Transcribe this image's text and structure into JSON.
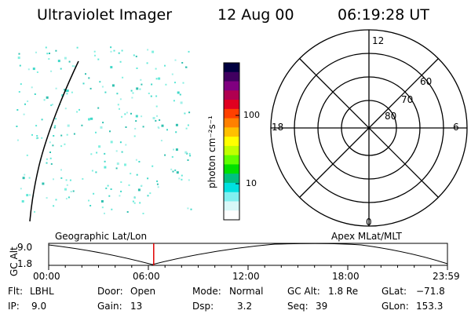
{
  "header": {
    "instrument": "Ultraviolet Imager",
    "date": "12 Aug 00",
    "time": "06:19:28 UT"
  },
  "colorbar": {
    "unit_label": "photon cm⁻²s⁻¹",
    "tick_100": "100",
    "tick_10": "10",
    "colors": [
      "#000040",
      "#400060",
      "#800080",
      "#b00050",
      "#e00020",
      "#ff4000",
      "#ff8000",
      "#ffc000",
      "#ffff00",
      "#c0ff00",
      "#60ff00",
      "#00e000",
      "#00c080",
      "#00e0e0",
      "#80f0f0",
      "#d8f8f8",
      "#ffffff"
    ]
  },
  "polar": {
    "mlt_12": "12",
    "mlt_18": "18",
    "mlt_6": "6",
    "mlt_0": "0",
    "lat_60": "60",
    "lat_70": "70",
    "lat_80": "80"
  },
  "timeline": {
    "left_label": "Geographic Lat/Lon",
    "right_label": "Apex MLat/MLT",
    "axis_label": "GC Alt",
    "y_max": "9.0",
    "y_min": "1.8",
    "times": [
      "00:00",
      "06:00",
      "12:00",
      "18:00",
      "23:59"
    ],
    "marker_time_fraction": 0.2634,
    "marker_color": "#e00000"
  },
  "status": {
    "flt_label": "Flt:",
    "flt_value": "LBHL",
    "ip_label": "IP:",
    "ip_value": "9.0",
    "door_label": "Door:",
    "door_value": "Open",
    "gain_label": "Gain:",
    "gain_value": "13",
    "mode_label": "Mode:",
    "mode_value": "Normal",
    "dsp_label": "Dsp:",
    "dsp_value": "3.2",
    "gcalt_label": "GC Alt:",
    "gcalt_value": "1.8 Re",
    "seq_label": "Seq:",
    "seq_value": "39",
    "glat_label": "GLat:",
    "glat_value": "−71.8",
    "glon_label": "GLon:",
    "glon_value": "153.3"
  }
}
